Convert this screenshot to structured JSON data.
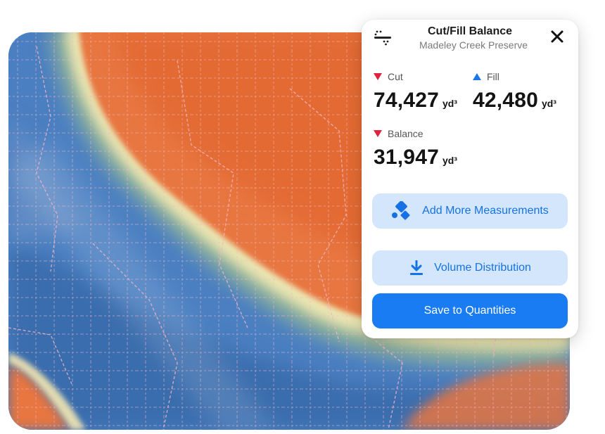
{
  "panel": {
    "icon": "cut-fill-icon",
    "title": "Cut/Fill Balance",
    "subtitle": "Madeley Creek Preserve",
    "close_icon": "close-icon"
  },
  "metrics": {
    "cut": {
      "label": "Cut",
      "value": "74,427",
      "unit": "yd³",
      "indicator": "down-triangle",
      "color": "#e0223f"
    },
    "fill": {
      "label": "Fill",
      "value": "42,480",
      "unit": "yd³",
      "indicator": "up-triangle",
      "color": "#1c78e8"
    },
    "balance": {
      "label": "Balance",
      "value": "31,947",
      "unit": "yd³",
      "indicator": "down-triangle",
      "color": "#e0223f"
    }
  },
  "buttons": {
    "add_measurements": {
      "label": "Add More Measurements",
      "icon": "shapes-icon"
    },
    "volume_distribution": {
      "label": "Volume Distribution",
      "icon": "download-icon"
    },
    "save": {
      "label": "Save to Quantities"
    }
  },
  "colors": {
    "cut_region": "#e8763f",
    "fill_region": "#4a7fc1",
    "transition": "#f1e8b3",
    "primary": "#1a7cf2",
    "primary_light": "#d3e6fb"
  }
}
